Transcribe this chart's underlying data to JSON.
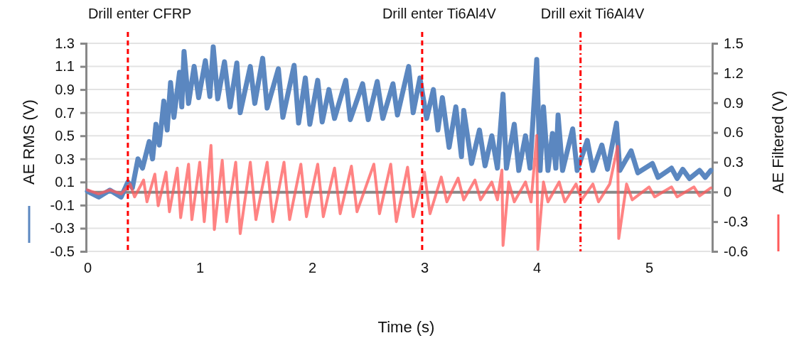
{
  "chart_data": {
    "type": "line",
    "xlabel": "Time (s)",
    "ylabel": "AE RMS (V)",
    "y2label": "AE Filtered (V)",
    "xlim": [
      0,
      5.55
    ],
    "xticks": [
      0,
      1,
      2,
      3,
      4,
      5
    ],
    "ylim": [
      -0.5,
      1.3
    ],
    "yticks": [
      -0.5,
      -0.3,
      -0.1,
      0.1,
      0.3,
      0.5,
      0.7,
      0.9,
      1.1,
      1.3
    ],
    "y2lim": [
      -0.6,
      1.5
    ],
    "y2ticks": [
      -0.6,
      -0.3,
      0,
      0.3,
      0.6,
      0.9,
      1.2,
      1.5
    ],
    "grid": "y",
    "marker": "none",
    "line_style": "solid",
    "series": [
      {
        "color": "#5b87c0",
        "x": [
          0,
          0.1,
          0.2,
          0.3,
          0.36,
          0.4,
          0.45,
          0.49,
          0.55,
          0.58,
          0.61,
          0.64,
          0.68,
          0.71,
          0.74,
          0.77,
          0.82,
          0.84,
          0.86,
          0.9,
          0.95,
          0.99,
          1.05,
          1.09,
          1.12,
          1.16,
          1.22,
          1.27,
          1.33,
          1.36,
          1.45,
          1.49,
          1.56,
          1.6,
          1.7,
          1.74,
          1.84,
          1.88,
          1.94,
          1.98,
          2.05,
          2.09,
          2.15,
          2.2,
          2.3,
          2.34,
          2.45,
          2.5,
          2.58,
          2.63,
          2.72,
          2.76,
          2.86,
          2.9,
          2.96,
          3.02,
          3.08,
          3.12,
          3.16,
          3.22,
          3.28,
          3.33,
          3.35,
          3.42,
          3.49,
          3.54,
          3.6,
          3.65,
          3.7,
          3.73,
          3.8,
          3.84,
          3.9,
          3.94,
          4.0,
          4.03,
          4.06,
          4.1,
          4.14,
          4.17,
          4.19,
          4.23,
          4.32,
          4.36,
          4.45,
          4.5,
          4.58,
          4.63,
          4.71,
          4.74,
          4.84,
          4.9,
          5.03,
          5.08,
          5.2,
          5.25,
          5.3,
          5.36,
          5.45,
          5.5,
          5.55
        ],
        "values": [
          0.02,
          -0.03,
          0.03,
          -0.03,
          0.1,
          0.05,
          0.3,
          0.22,
          0.45,
          0.3,
          0.6,
          0.42,
          0.8,
          0.55,
          0.96,
          0.66,
          1.05,
          0.75,
          1.23,
          0.78,
          1.1,
          0.83,
          1.15,
          0.84,
          1.27,
          0.82,
          1.14,
          0.75,
          1.13,
          0.7,
          1.1,
          0.78,
          1.17,
          0.74,
          1.08,
          0.66,
          1.11,
          0.61,
          1.0,
          0.6,
          0.98,
          0.62,
          0.9,
          0.65,
          0.98,
          0.64,
          0.95,
          0.64,
          0.97,
          0.65,
          0.95,
          0.68,
          1.1,
          0.7,
          1.0,
          0.65,
          0.9,
          0.55,
          0.83,
          0.4,
          0.75,
          0.32,
          0.72,
          0.26,
          0.55,
          0.24,
          0.5,
          0.22,
          0.86,
          0.22,
          0.6,
          0.2,
          0.5,
          0.22,
          1.16,
          0.2,
          0.75,
          0.2,
          0.52,
          0.22,
          0.68,
          0.2,
          0.56,
          0.2,
          0.46,
          0.2,
          0.42,
          0.21,
          0.61,
          0.2,
          0.37,
          0.18,
          0.26,
          0.14,
          0.22,
          0.13,
          0.21,
          0.13,
          0.2,
          0.14,
          0.2
        ]
      },
      {
        "color": "#ff5a5a",
        "axis": "y2",
        "x": [
          0,
          0.1,
          0.2,
          0.3,
          0.38,
          0.42,
          0.5,
          0.53,
          0.6,
          0.63,
          0.7,
          0.73,
          0.8,
          0.83,
          0.9,
          0.93,
          1.0,
          1.04,
          1.1,
          1.13,
          1.2,
          1.24,
          1.32,
          1.36,
          1.45,
          1.5,
          1.6,
          1.65,
          1.75,
          1.8,
          1.9,
          1.95,
          2.05,
          2.1,
          2.2,
          2.25,
          2.35,
          2.4,
          2.55,
          2.6,
          2.7,
          2.75,
          2.85,
          2.9,
          3.0,
          3.05,
          3.15,
          3.2,
          3.3,
          3.35,
          3.45,
          3.5,
          3.6,
          3.65,
          3.69,
          3.7,
          3.75,
          3.8,
          3.9,
          3.95,
          4.0,
          4.01,
          4.06,
          4.1,
          4.2,
          4.25,
          4.35,
          4.4,
          4.5,
          4.55,
          4.65,
          4.72,
          4.73,
          4.8,
          4.85,
          5.0,
          5.05,
          5.2,
          5.25,
          5.4,
          5.45,
          5.55
        ],
        "values": [
          0.02,
          -0.02,
          0.02,
          -0.02,
          0.08,
          -0.05,
          0.12,
          -0.1,
          0.18,
          -0.14,
          0.2,
          -0.2,
          0.24,
          -0.26,
          0.28,
          -0.28,
          0.3,
          -0.3,
          0.47,
          -0.38,
          0.32,
          -0.3,
          0.3,
          -0.42,
          0.3,
          -0.28,
          0.3,
          -0.3,
          0.3,
          -0.28,
          0.28,
          -0.25,
          0.28,
          -0.25,
          0.24,
          -0.22,
          0.26,
          -0.2,
          0.28,
          -0.22,
          0.28,
          -0.3,
          0.25,
          -0.25,
          0.2,
          -0.22,
          0.15,
          -0.1,
          0.14,
          -0.08,
          0.12,
          -0.08,
          0.1,
          -0.08,
          0.22,
          -0.54,
          0.1,
          -0.1,
          0.1,
          -0.1,
          0.57,
          -0.58,
          0.1,
          -0.1,
          0.1,
          -0.1,
          0.08,
          -0.08,
          0.08,
          -0.1,
          0.08,
          0.46,
          -0.47,
          0.08,
          -0.08,
          0.05,
          -0.05,
          0.05,
          -0.05,
          0.05,
          -0.04,
          0.04
        ]
      }
    ],
    "ref_lines": [
      {
        "axis": "x",
        "value": 0.36,
        "label": "Drill enter CFRP",
        "color": "#ff0000",
        "line_style": "dashed"
      },
      {
        "axis": "x",
        "value": 2.98,
        "label": "Drill enter Ti6Al4V",
        "color": "#ff0000",
        "line_style": "dashed"
      },
      {
        "axis": "x",
        "value": 4.39,
        "label": "Drill exit Ti6Al4V",
        "color": "#ff0000",
        "line_style": "dashdot"
      }
    ]
  }
}
